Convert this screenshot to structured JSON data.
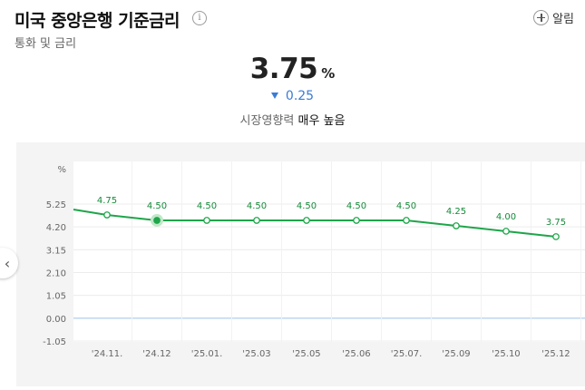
{
  "header": {
    "title": "미국 중앙은행 기준금리",
    "info_icon": "info-circle-icon",
    "subtitle": "통화 및 금리",
    "alarm_label": "알림",
    "alarm_icon": "plus-circle-icon"
  },
  "summary": {
    "value": "3.75",
    "unit": "%",
    "change": "0.25",
    "change_direction": "down",
    "impact_label": "시장영향력",
    "impact_value": "매우 높음"
  },
  "nav": {
    "prev_icon": "chevron-left-icon"
  },
  "colors": {
    "line": "#1fa54a",
    "change": "#3a7bd5",
    "panel_bg": "#f4f4f4",
    "zero_line": "#9ec2e8"
  },
  "chart_data": {
    "type": "line",
    "ylabel": "%",
    "ylim": [
      -1.05,
      5.25
    ],
    "yticks": [
      "5.25",
      "4.20",
      "3.15",
      "2.10",
      "1.05",
      "0.00",
      "-1.05"
    ],
    "categories": [
      "'24.11.",
      "'24.12",
      "'25.01.",
      "'25.03",
      "'25.05",
      "'25.06",
      "'25.07.",
      "'25.09",
      "'25.10",
      "'25.12"
    ],
    "values": [
      4.75,
      4.5,
      4.5,
      4.5,
      4.5,
      4.5,
      4.5,
      4.25,
      4.0,
      3.75
    ],
    "labels": [
      "4.75",
      "4.50",
      "4.50",
      "4.50",
      "4.50",
      "4.50",
      "4.50",
      "4.25",
      "4.00",
      "3.75"
    ],
    "start_value": 5.0,
    "highlight_index": 1,
    "grid": true
  }
}
